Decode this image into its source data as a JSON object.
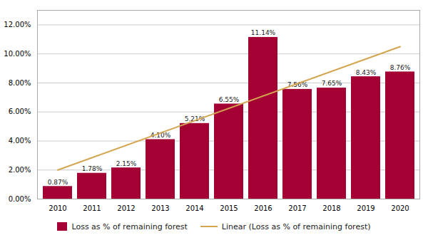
{
  "chart_data": {
    "type": "bar",
    "categories": [
      "2010",
      "2011",
      "2012",
      "2013",
      "2014",
      "2015",
      "2016",
      "2017",
      "2018",
      "2019",
      "2020"
    ],
    "series": [
      {
        "name": "Loss as % of remaining forest",
        "type": "bar",
        "color": "#A50034",
        "values": [
          0.0087,
          0.0178,
          0.0215,
          0.041,
          0.0521,
          0.0655,
          0.1114,
          0.0756,
          0.0765,
          0.0843,
          0.0876
        ],
        "value_labels": [
          "0.87%",
          "1.78%",
          "2.15%",
          "4.10%",
          "5.21%",
          "6.55%",
          "11.14%",
          "7.56%",
          "7.65%",
          "8.43%",
          "8.76%"
        ]
      },
      {
        "name": "Linear (Loss as % of remaining forest)",
        "type": "line",
        "color": "#D4A550",
        "x": [
          "2010",
          "2020"
        ],
        "values": [
          0.02,
          0.105
        ]
      }
    ],
    "ylim": [
      0,
      0.13
    ],
    "yticks": [
      {
        "value": 0.0,
        "label": "0.00%"
      },
      {
        "value": 0.02,
        "label": "2.00%"
      },
      {
        "value": 0.04,
        "label": "4.00%"
      },
      {
        "value": 0.06,
        "label": "6.00%"
      },
      {
        "value": 0.08,
        "label": "8.00%"
      },
      {
        "value": 0.1,
        "label": "10.00%"
      },
      {
        "value": 0.12,
        "label": "12.00%"
      }
    ],
    "grid": true,
    "data_labels": true,
    "legend": "bottom"
  }
}
